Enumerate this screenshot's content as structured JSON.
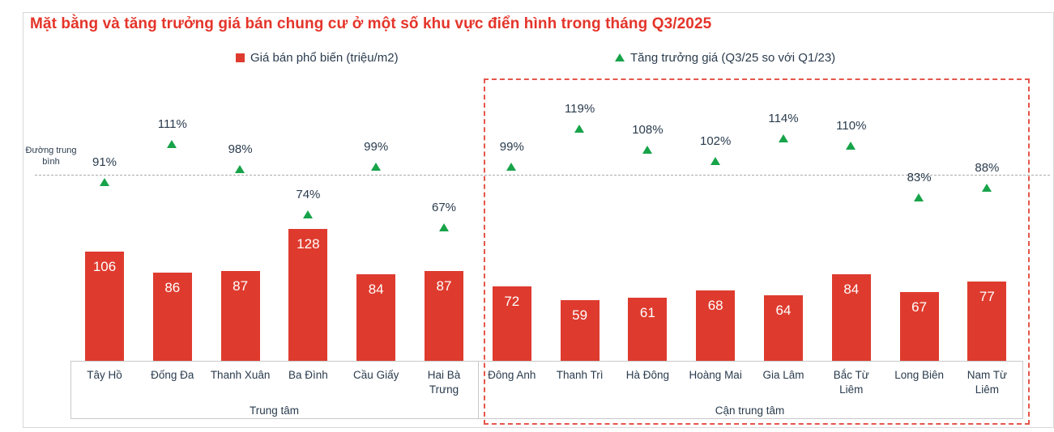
{
  "header": {
    "title": "Mặt bằng và tăng trưởng giá bán chung cư ở một số khu vực điển hình trong tháng Q3/2025"
  },
  "legend": {
    "price": {
      "label": "Giá bán phổ biến (triệu/m2)",
      "marker": "square",
      "color": "#DE3B2E"
    },
    "growth": {
      "label": "Tăng trưởng giá (Q3/25 so với Q1/23)",
      "marker": "triangle",
      "color": "#17A349"
    }
  },
  "average_line": {
    "label": "Đường trung bình"
  },
  "chart_data": {
    "type": "bar",
    "title": "Mặt bằng và tăng trưởng giá bán chung cư ở một số khu vực điển hình trong tháng Q3/2025",
    "legend_position": "top",
    "grid": false,
    "categories": [
      "Tây Hồ",
      "Đống Đa",
      "Thanh Xuân",
      "Ba Đình",
      "Cầu Giấy",
      "Hai Bà Trưng",
      "Đông Anh",
      "Thanh Trì",
      "Hà Đông",
      "Hoàng Mai",
      "Gia Lâm",
      "Bắc Từ Liêm",
      "Long Biên",
      "Nam Từ Liêm"
    ],
    "category_label_lines": [
      "Tây Hồ",
      "Đống Đa",
      "Thanh Xuân",
      "Ba Đình",
      "Cầu Giấy",
      "Hai Bà\nTrưng",
      "Đông Anh",
      "Thanh Trì",
      "Hà Đông",
      "Hoàng Mai",
      "Gia Lâm",
      "Bắc Từ\nLiêm",
      "Long Biên",
      "Nam Từ\nLiêm"
    ],
    "groups": [
      {
        "label": "Trung tâm",
        "categories_count": 6,
        "highlighted": false
      },
      {
        "label": "Cận trung tâm",
        "categories_count": 8,
        "highlighted": true
      }
    ],
    "series": [
      {
        "name": "Giá bán phổ biến (triệu/m2)",
        "type": "bar",
        "unit": "triệu/m2",
        "color": "#DE3B2E",
        "values": [
          106,
          86,
          87,
          128,
          84,
          87,
          72,
          59,
          61,
          68,
          64,
          84,
          67,
          77
        ]
      },
      {
        "name": "Tăng trưởng giá (Q3/25 so với Q1/23)",
        "type": "scatter",
        "marker": "triangle",
        "unit": "%",
        "color": "#17A349",
        "values": [
          91,
          111,
          98,
          74,
          99,
          67,
          99,
          119,
          108,
          102,
          114,
          110,
          83,
          88
        ]
      }
    ],
    "annotations": {
      "average_line_label": "Đường trung bình"
    }
  },
  "colors": {
    "bar_red": "#DE3B2E",
    "growth_green": "#17A349",
    "title_red": "#E4342A",
    "text_navy": "#2A3B4D",
    "highlight_dash_red": "#E4564A",
    "axis_grey": "#C9C9C9",
    "average_line_grey": "#ABABAB"
  }
}
